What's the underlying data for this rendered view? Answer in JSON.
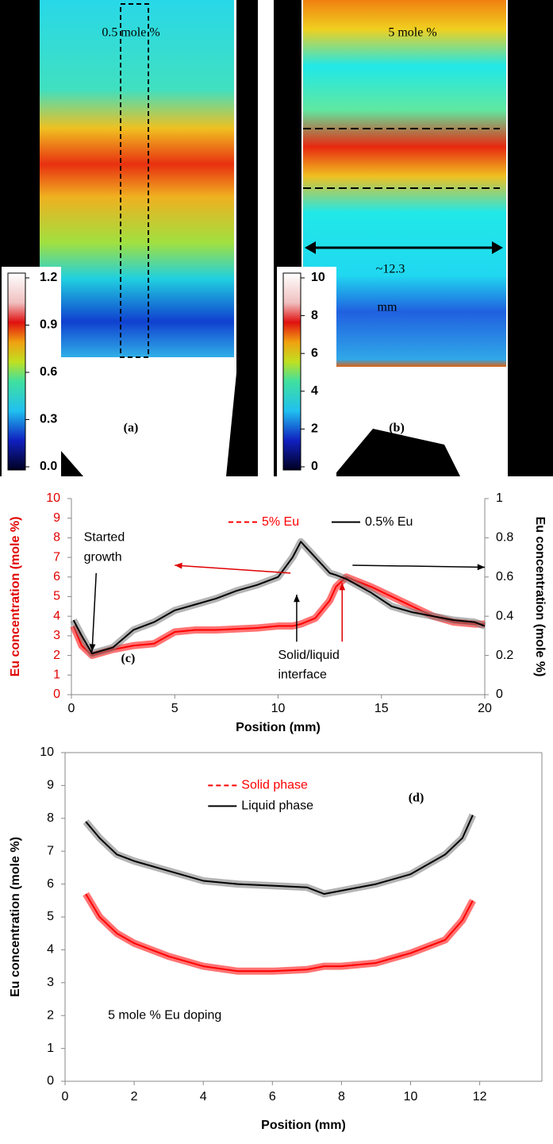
{
  "images": [
    {
      "title": "0.5 mole %",
      "label": "(a)",
      "colorbar": {
        "lim": [
          0,
          1.2
        ],
        "ticks": [
          {
            "value": 0,
            "label": "0.0"
          },
          0.3,
          0.6,
          0.9,
          1.2
        ]
      }
    },
    {
      "title": "5 mole %",
      "label": "(b)",
      "annotation": [
        "~12.3",
        "mm"
      ],
      "colorbar": {
        "lim": [
          0,
          10
        ],
        "ticks": [
          0,
          2,
          4,
          6,
          8,
          10
        ]
      }
    }
  ],
  "chart_data": [
    {
      "type": "line",
      "xlabel": "Position (mm)",
      "ylabel": "Eu concentration (mole %)",
      "y2label": "Eu concentration (mole %)",
      "x": [
        0.1,
        0.5,
        1,
        2,
        3,
        4,
        5,
        6,
        7,
        8,
        9,
        10,
        10.7,
        11.1,
        11.8,
        12.5,
        12.8,
        13.3,
        14.5,
        15.5,
        16.5,
        17.5,
        18.5,
        19.5,
        20
      ],
      "series": [
        {
          "name": "5% Eu",
          "color": "#ff0000",
          "line_style": "dashed",
          "values": [
            3.5,
            2.5,
            2,
            2.3,
            2.5,
            2.6,
            3.2,
            3.3,
            3.3,
            3.35,
            3.4,
            3.5,
            3.5,
            3.6,
            3.9,
            4.8,
            5.5,
            6.0,
            5.5,
            5.0,
            4.5,
            4.0,
            3.7,
            3.6,
            3.6
          ]
        },
        {
          "name": "0.5% Eu",
          "color": "#000000",
          "line_style": "solid",
          "axis": "y2",
          "values": [
            0.38,
            0.3,
            0.21,
            0.24,
            0.33,
            0.37,
            0.43,
            0.46,
            0.49,
            0.53,
            0.56,
            0.6,
            0.7,
            0.78,
            0.7,
            0.62,
            0.61,
            0.59,
            0.52,
            0.45,
            0.42,
            0.4,
            0.38,
            0.37,
            0.35
          ]
        }
      ],
      "xlim": [
        0,
        20
      ],
      "xticks": [
        0,
        5,
        10,
        15,
        20
      ],
      "ylim": [
        0,
        10
      ],
      "yticks": [
        0,
        1,
        2,
        3,
        4,
        5,
        6,
        7,
        8,
        9,
        10
      ],
      "y2lim": [
        0,
        1
      ],
      "y2ticks": [
        0,
        0.2,
        0.4,
        0.6,
        0.8,
        1
      ],
      "ytick_color": "#e00000",
      "annotations": [
        [
          "Started",
          "growth"
        ],
        [
          "Solid/liquid",
          "interface"
        ],
        [
          "(c)"
        ]
      ],
      "legend": "top"
    },
    {
      "type": "line",
      "xlabel": "Position (mm)",
      "ylabel": "Eu concentration (mole %)",
      "x": [
        0.6,
        1,
        1.5,
        2,
        3,
        4,
        5,
        6,
        7,
        7.5,
        8,
        9,
        10,
        10.5,
        11,
        11.5,
        11.8
      ],
      "series": [
        {
          "name": "Solid phase",
          "color": "#ff0000",
          "line_style": "dashed",
          "values": [
            5.7,
            5.0,
            4.5,
            4.2,
            3.8,
            3.5,
            3.35,
            3.35,
            3.4,
            3.5,
            3.5,
            3.6,
            3.9,
            4.1,
            4.3,
            4.9,
            5.5
          ]
        },
        {
          "name": "Liquid phase",
          "color": "#000000",
          "line_style": "solid",
          "values": [
            7.9,
            7.4,
            6.9,
            6.7,
            6.4,
            6.1,
            6.0,
            5.95,
            5.9,
            5.7,
            5.8,
            6.0,
            6.3,
            6.6,
            6.9,
            7.4,
            8.1
          ]
        }
      ],
      "xlim": [
        0,
        13.8
      ],
      "xticks": [
        0,
        2,
        4,
        6,
        8,
        10,
        12
      ],
      "ylim": [
        0,
        10
      ],
      "yticks": [
        0,
        1,
        2,
        3,
        4,
        5,
        6,
        7,
        8,
        9,
        10
      ],
      "ytick_color": "#000000",
      "annotations": [
        [
          "(d)"
        ],
        [
          "5 mole % Eu doping"
        ]
      ],
      "legend": "top-left"
    }
  ]
}
